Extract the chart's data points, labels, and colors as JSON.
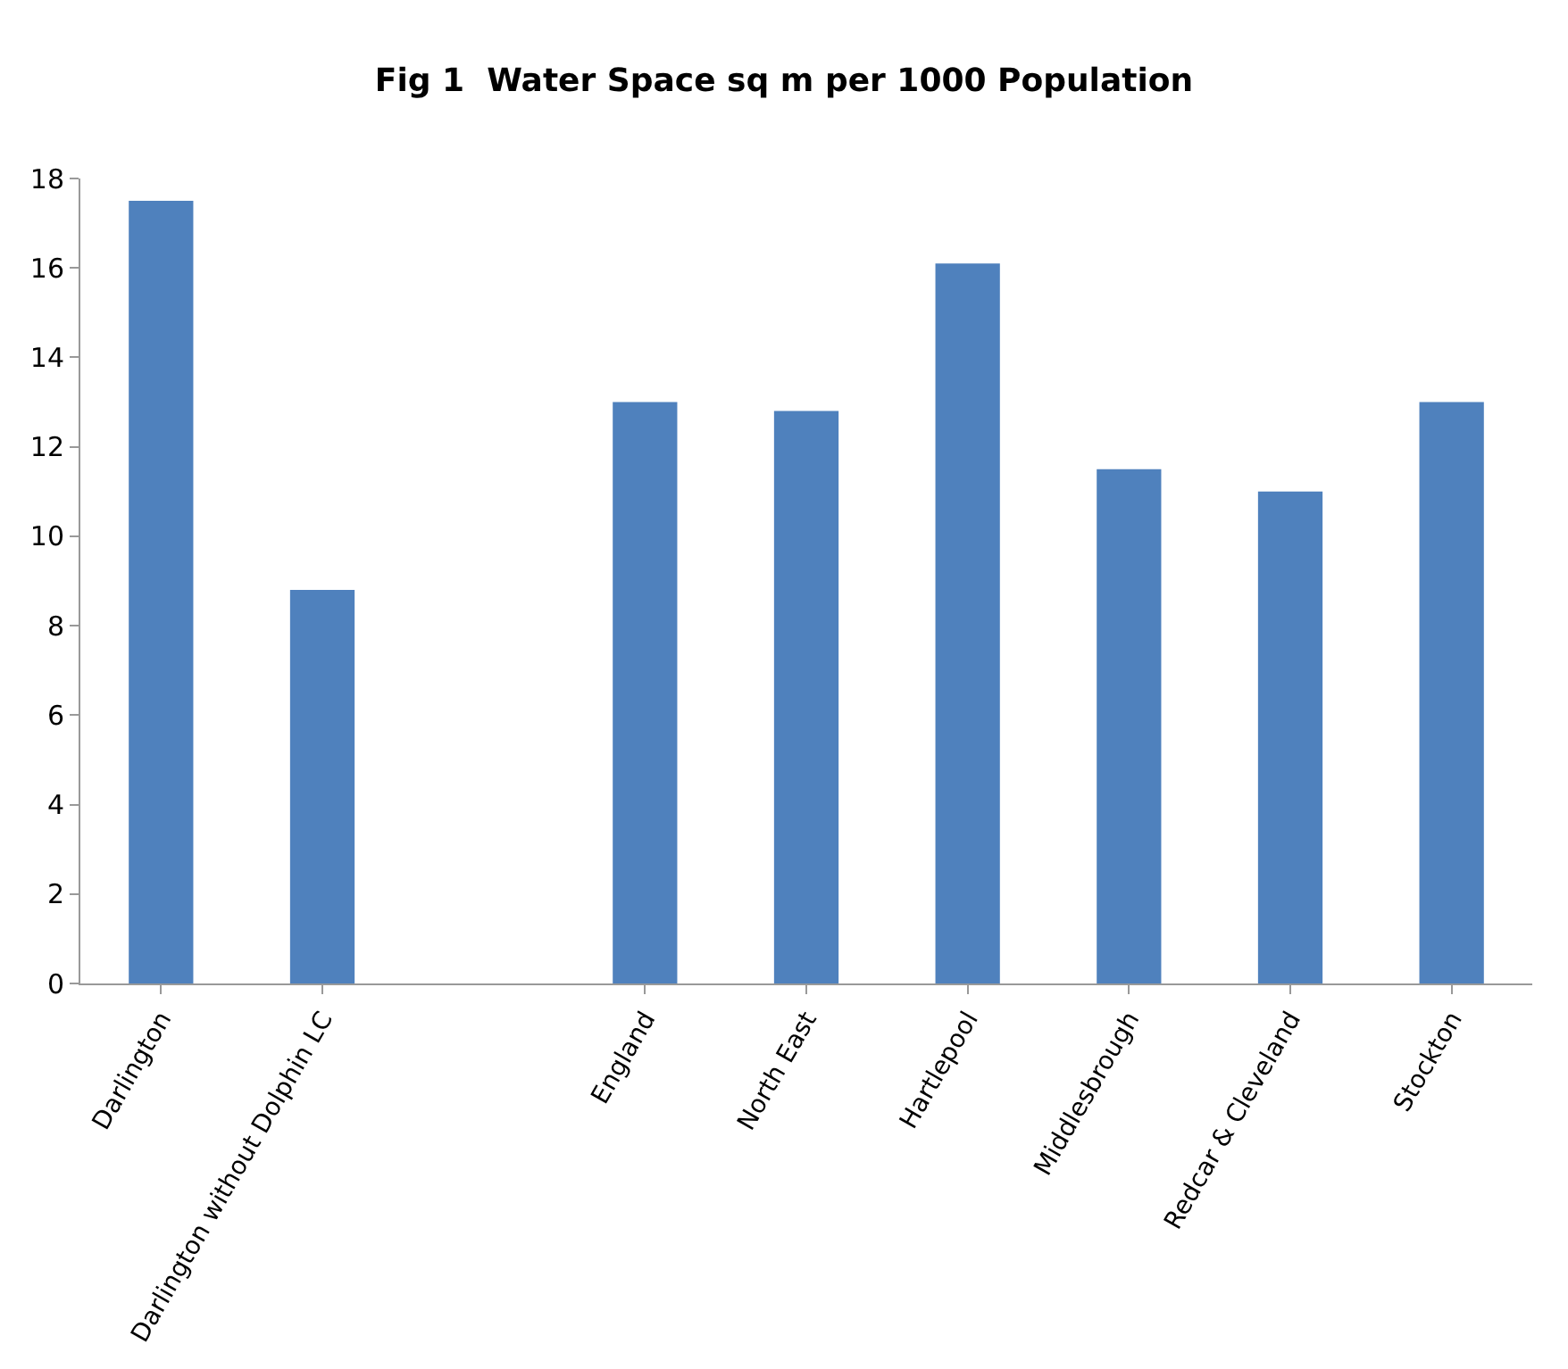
{
  "chart_data": {
    "type": "bar",
    "title": "Fig 1  Water Space sq m per 1000 Population",
    "categories": [
      "Darlington",
      "Darlington without Dolphin LC",
      null,
      "England",
      "North East",
      "Hartlepool",
      "Middlesbrough",
      "Redcar & Cleveland",
      "Stockton"
    ],
    "values": [
      17.5,
      8.8,
      null,
      13.0,
      12.8,
      16.1,
      11.5,
      11.0,
      13.0
    ],
    "color": "#4f81bd",
    "ylim": [
      0,
      18
    ],
    "yticks": [
      0,
      2,
      4,
      6,
      8,
      10,
      12,
      14,
      16,
      18
    ],
    "grid": false
  }
}
